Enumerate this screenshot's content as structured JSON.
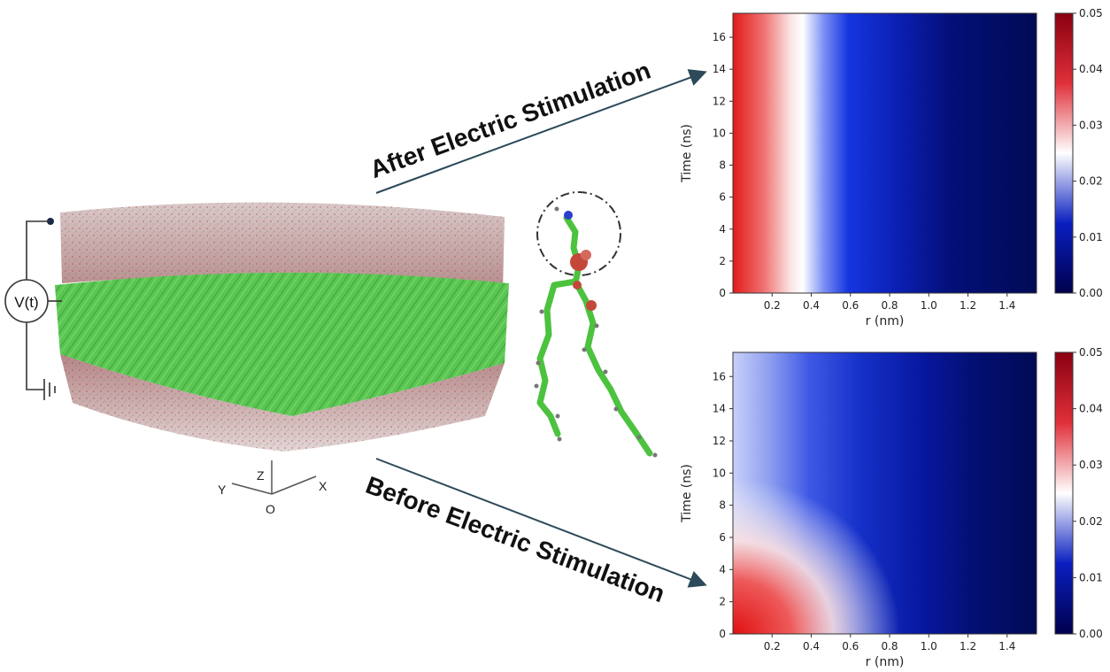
{
  "labels": {
    "after": "After Electric Stimulation",
    "before": "Before Electric Stimulation",
    "voltage": "V(t)",
    "axis_z": "Z",
    "axis_y": "Y",
    "axis_x": "X",
    "axis_origin": "O"
  },
  "colors": {
    "membrane": "#4fc24a",
    "water_red": "#c0392b",
    "water_grey": "#b8a9a9",
    "arrow": "#2c4a5a",
    "cmap_high": "#b3001a",
    "cmap_mid": "#ffffff",
    "cmap_low": "#00004d"
  },
  "chart_data": [
    {
      "type": "heatmap",
      "panel": "after",
      "xlabel": "r (nm)",
      "ylabel": "Time (ns)",
      "x_ticks": [
        "0.2",
        "0.4",
        "0.6",
        "0.8",
        "1.0",
        "1.2",
        "1.4"
      ],
      "y_ticks": [
        "0",
        "2",
        "4",
        "6",
        "8",
        "10",
        "12",
        "14",
        "16"
      ],
      "xlim": [
        0,
        1.55
      ],
      "ylim": [
        0,
        17.5
      ],
      "colorbar_ticks": [
        "0.00",
        "0.01",
        "0.02",
        "0.03",
        "0.04",
        "0.05"
      ],
      "colorbar_range": [
        0,
        0.05
      ],
      "white_boundary_r_nm": 0.33
    },
    {
      "type": "heatmap",
      "panel": "before",
      "xlabel": "r (nm)",
      "ylabel": "Time (ns)",
      "x_ticks": [
        "0.2",
        "0.4",
        "0.6",
        "0.8",
        "1.0",
        "1.2",
        "1.4"
      ],
      "y_ticks": [
        "0",
        "2",
        "4",
        "6",
        "8",
        "10",
        "12",
        "14",
        "16"
      ],
      "xlim": [
        0,
        1.55
      ],
      "ylim": [
        0,
        17.5
      ],
      "colorbar_ticks": [
        "0.00",
        "0.01",
        "0.02",
        "0.03",
        "0.04",
        "0.05"
      ],
      "colorbar_range": [
        0,
        0.05
      ],
      "white_boundary_r_nm": 0.33
    }
  ]
}
